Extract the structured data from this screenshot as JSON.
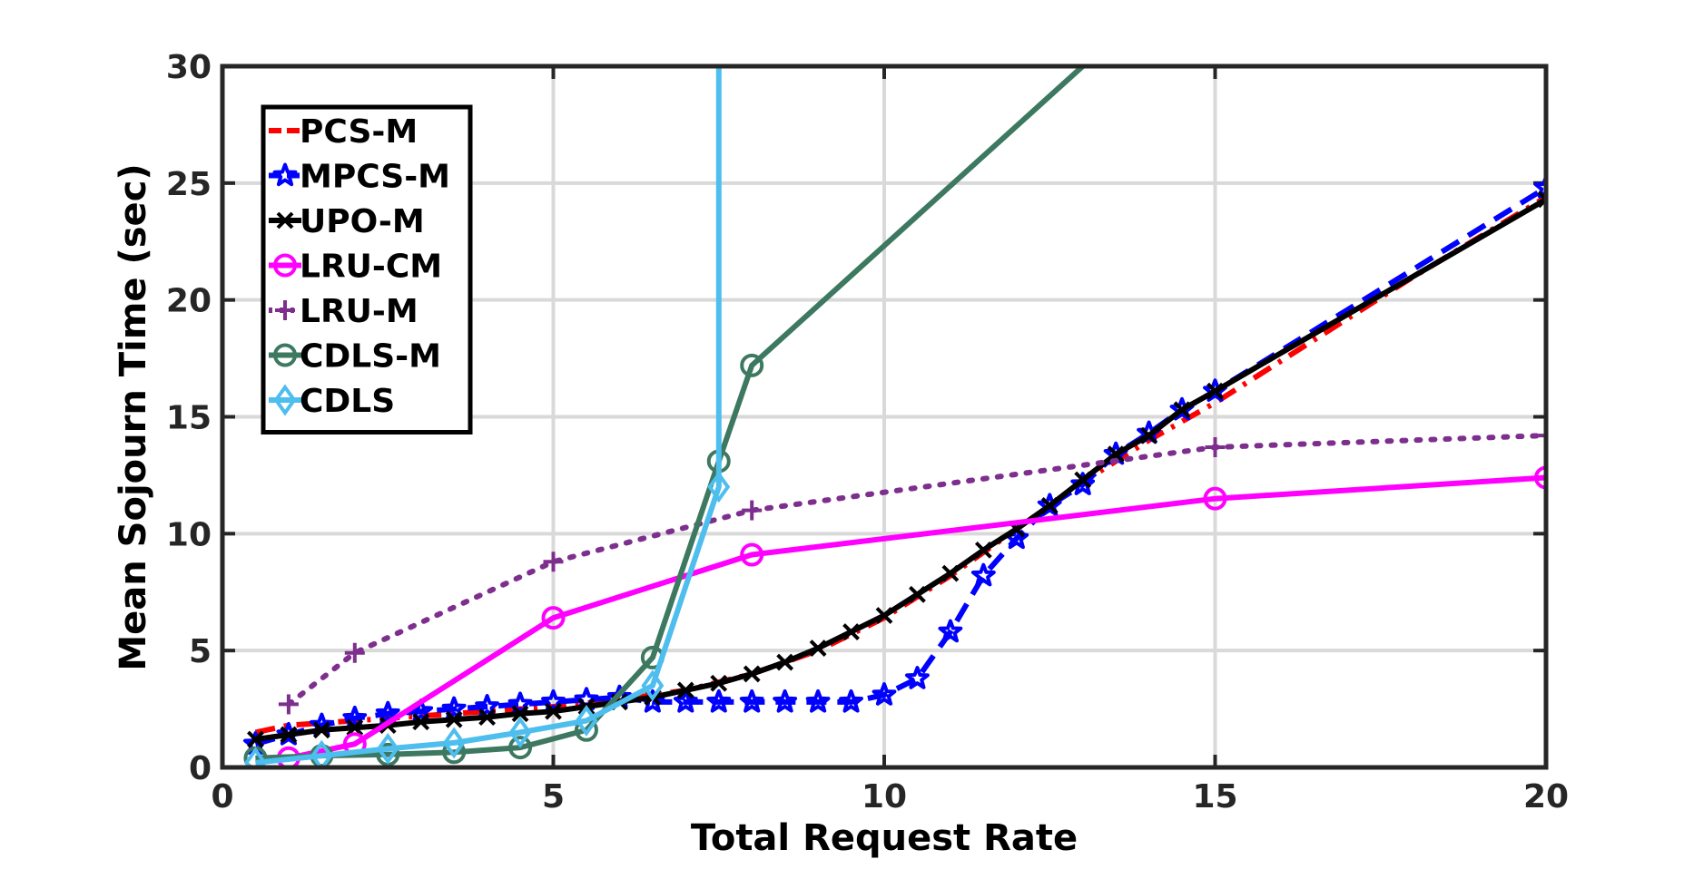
{
  "chart_data": {
    "type": "line",
    "title": "",
    "xlabel": "Total Request Rate",
    "ylabel": "Mean Sojourn Time (sec)",
    "xlim": [
      0,
      20
    ],
    "ylim": [
      0,
      30
    ],
    "xticks": [
      0,
      5,
      10,
      15,
      20
    ],
    "yticks": [
      0,
      5,
      10,
      15,
      20,
      25,
      30
    ],
    "grid": true,
    "legend_position": "top-left",
    "series": [
      {
        "name": "PCS-M",
        "color": "#ff0000",
        "dash": "dashdot",
        "marker": "none",
        "x": [
          0.5,
          1,
          2,
          3,
          4,
          5,
          6,
          7,
          8,
          9,
          10,
          11,
          12,
          13,
          14,
          15,
          16,
          17,
          18,
          19,
          20
        ],
        "y": [
          1.5,
          1.8,
          2.0,
          2.2,
          2.4,
          2.6,
          2.9,
          3.3,
          4.0,
          5.0,
          6.4,
          8.2,
          10.2,
          12.2,
          14.0,
          15.6,
          17.4,
          19.2,
          21.0,
          22.7,
          24.4
        ]
      },
      {
        "name": "MPCS-M",
        "color": "#0000ff",
        "dash": "dash",
        "marker": "star",
        "x": [
          0.5,
          1,
          1.5,
          2,
          2.5,
          3,
          3.5,
          4,
          4.5,
          5,
          5.5,
          6,
          6.5,
          7,
          7.5,
          8,
          8.5,
          9,
          9.5,
          10,
          10.5,
          11,
          11.5,
          12,
          12.5,
          13,
          13.5,
          14,
          14.5,
          15,
          20
        ],
        "y": [
          1.0,
          1.4,
          1.8,
          2.1,
          2.3,
          2.4,
          2.5,
          2.6,
          2.7,
          2.8,
          2.9,
          3.0,
          2.8,
          2.8,
          2.8,
          2.8,
          2.8,
          2.8,
          2.8,
          3.1,
          3.8,
          5.8,
          8.2,
          9.8,
          11.2,
          12.1,
          13.4,
          14.3,
          15.3,
          16.1,
          24.8
        ]
      },
      {
        "name": "UPO-M",
        "color": "#000000",
        "dash": "solid",
        "marker": "x",
        "x": [
          0.5,
          1,
          1.5,
          2,
          2.5,
          3,
          3.5,
          4,
          4.5,
          5,
          5.5,
          6,
          6.5,
          7,
          7.5,
          8,
          8.5,
          9,
          9.5,
          10,
          10.5,
          11,
          11.5,
          12,
          12.5,
          13,
          13.5,
          14,
          14.5,
          15,
          20
        ],
        "y": [
          1.2,
          1.4,
          1.6,
          1.7,
          1.8,
          1.95,
          2.05,
          2.15,
          2.3,
          2.4,
          2.6,
          2.8,
          3.0,
          3.3,
          3.6,
          4.0,
          4.5,
          5.1,
          5.8,
          6.5,
          7.4,
          8.3,
          9.3,
          10.2,
          11.2,
          12.3,
          13.4,
          14.2,
          15.3,
          16.1,
          24.3
        ]
      },
      {
        "name": "LRU-CM",
        "color": "#ff00ff",
        "dash": "solid",
        "marker": "circle",
        "x": [
          1,
          2,
          5,
          8,
          15,
          20
        ],
        "y": [
          0.4,
          1.0,
          6.4,
          9.1,
          11.5,
          12.4
        ]
      },
      {
        "name": "LRU-M",
        "color": "#7e2f8e",
        "dash": "dot",
        "marker": "plus",
        "x": [
          1,
          2,
          5,
          8,
          15,
          20
        ],
        "y": [
          2.7,
          4.9,
          8.8,
          11.0,
          13.7,
          14.2
        ]
      },
      {
        "name": "CDLS-M",
        "color": "#3d7860",
        "dash": "solid",
        "marker": "circle",
        "x": [
          0.5,
          1.5,
          2.5,
          3.5,
          4.5,
          5.5,
          6.5,
          7.5,
          8,
          13
        ],
        "y": [
          0.4,
          0.5,
          0.55,
          0.65,
          0.85,
          1.6,
          4.7,
          13.1,
          17.2,
          30
        ]
      },
      {
        "name": "CDLS",
        "color": "#4dbeee",
        "dash": "solid",
        "marker": "diamond",
        "x": [
          0.5,
          1.5,
          2.5,
          3.5,
          4.5,
          5.5,
          6.5,
          7.5,
          7.5
        ],
        "y": [
          0.2,
          0.5,
          0.8,
          1.05,
          1.5,
          2.0,
          3.5,
          12.0,
          30
        ]
      }
    ]
  }
}
